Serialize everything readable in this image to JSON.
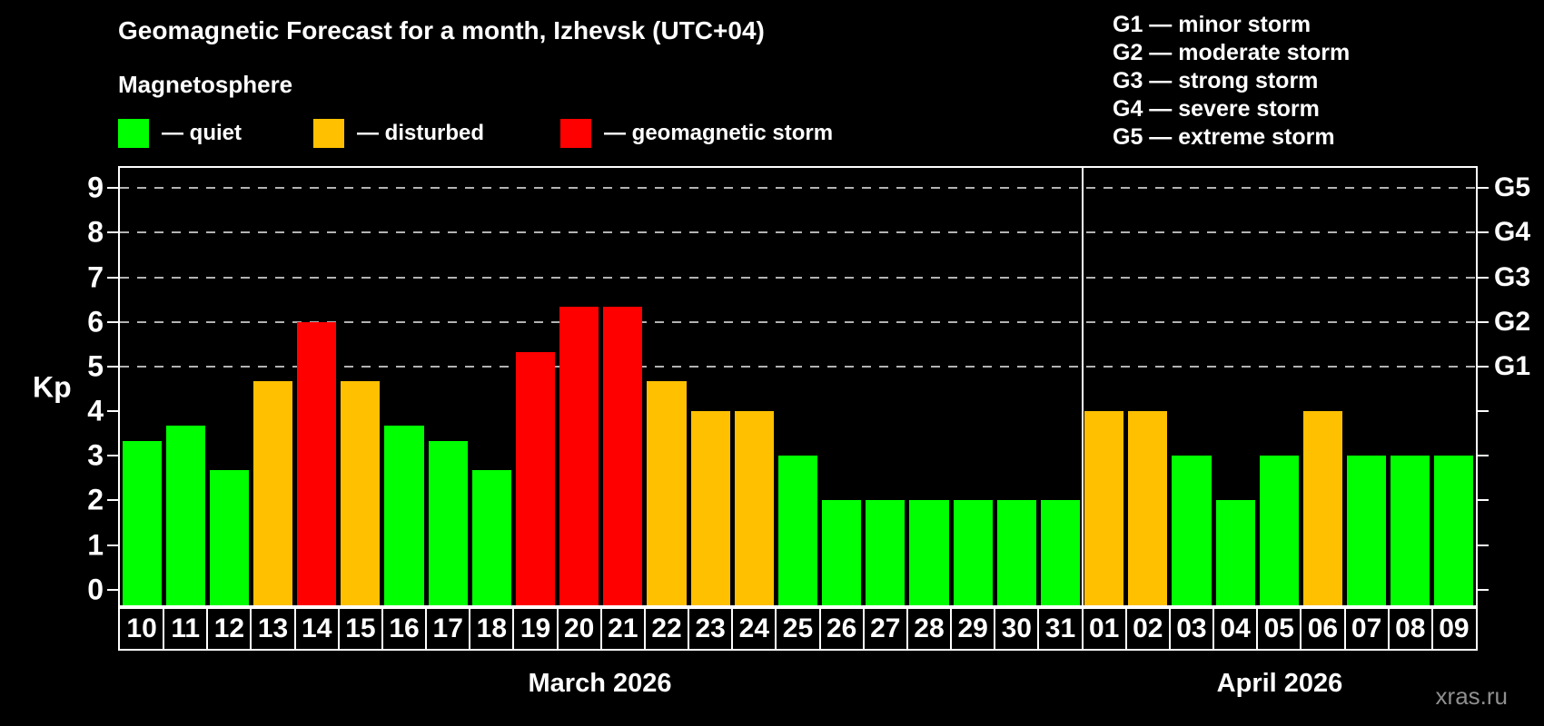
{
  "title": "Geomagnetic Forecast for a month, Izhevsk (UTC+04)",
  "subtitle": "Magnetosphere",
  "legend": {
    "items": [
      {
        "key": "quiet",
        "label": "— quiet",
        "color": "#00FF00"
      },
      {
        "key": "disturbed",
        "label": "— disturbed",
        "color": "#FFC000"
      },
      {
        "key": "storm",
        "label": "— geomagnetic storm",
        "color": "#FF0000"
      }
    ]
  },
  "g_legend": [
    "G1 — minor storm",
    "G2 — moderate storm",
    "G3 — strong storm",
    "G4 — severe storm",
    "G5 — extreme storm"
  ],
  "y_axis": {
    "label": "Kp",
    "ticks": [
      0,
      1,
      2,
      3,
      4,
      5,
      6,
      7,
      8,
      9
    ]
  },
  "right_axis": {
    "g_ticks": [
      {
        "label": "G1",
        "kp": 5
      },
      {
        "label": "G2",
        "kp": 6
      },
      {
        "label": "G3",
        "kp": 7
      },
      {
        "label": "G4",
        "kp": 8
      },
      {
        "label": "G5",
        "kp": 9
      }
    ]
  },
  "watermark": "xras.ru",
  "chart_data": {
    "type": "bar",
    "ylabel": "Kp",
    "ylim": [
      -0.35,
      9.45
    ],
    "grid": "dashed horizontal lines at Kp 5-9 only",
    "gridlines_kp": [
      5,
      6,
      7,
      8,
      9
    ],
    "legend_position": "top",
    "months": [
      {
        "label": "March 2026",
        "days": [
          "10",
          "11",
          "12",
          "13",
          "14",
          "15",
          "16",
          "17",
          "18",
          "19",
          "20",
          "21",
          "22",
          "23",
          "24",
          "25",
          "26",
          "27",
          "28",
          "29",
          "30",
          "31"
        ],
        "values": [
          3.33,
          3.67,
          2.67,
          4.67,
          6.0,
          4.67,
          3.67,
          3.33,
          2.67,
          5.33,
          6.33,
          6.33,
          4.67,
          4.0,
          4.0,
          3.0,
          2.0,
          2.0,
          2.0,
          2.0,
          2.0,
          2.0
        ],
        "categories": [
          "quiet",
          "quiet",
          "quiet",
          "disturbed",
          "storm",
          "disturbed",
          "quiet",
          "quiet",
          "quiet",
          "storm",
          "storm",
          "storm",
          "disturbed",
          "disturbed",
          "disturbed",
          "quiet",
          "quiet",
          "quiet",
          "quiet",
          "quiet",
          "quiet",
          "quiet"
        ]
      },
      {
        "label": "April 2026",
        "days": [
          "01",
          "02",
          "03",
          "04",
          "05",
          "06",
          "07",
          "08",
          "09"
        ],
        "values": [
          4.0,
          4.0,
          3.0,
          2.0,
          3.0,
          4.0,
          3.0,
          3.0,
          3.0
        ],
        "categories": [
          "disturbed",
          "disturbed",
          "quiet",
          "quiet",
          "quiet",
          "disturbed",
          "quiet",
          "quiet",
          "quiet"
        ]
      }
    ]
  }
}
